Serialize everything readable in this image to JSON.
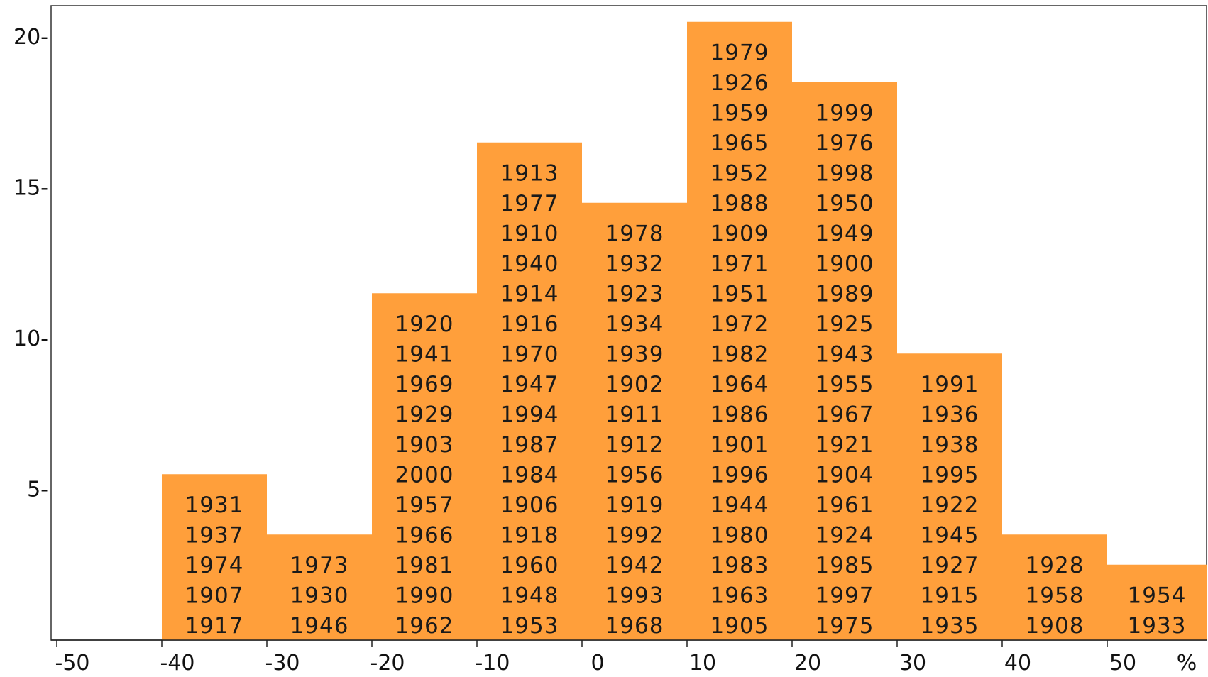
{
  "chart_data": {
    "type": "bar",
    "title": "",
    "xlabel": "",
    "ylabel": "",
    "unit_label": "%",
    "bar_color": "#FF9F3B",
    "xlim": [
      -50,
      55
    ],
    "ylim": [
      0,
      21.5
    ],
    "x_ticks": [
      "-50",
      "-40",
      "-30",
      "-20",
      "-10",
      "0",
      "10",
      "20",
      "30",
      "40",
      "50"
    ],
    "y_ticks": [
      "5-",
      "10-",
      "15-",
      "20-"
    ],
    "bins": [
      {
        "range": [
          -40,
          -30
        ],
        "count": 5,
        "years": [
          "1931",
          "1937",
          "1974",
          "1907",
          "1917"
        ]
      },
      {
        "range": [
          -30,
          -20
        ],
        "count": 3,
        "years": [
          "1973",
          "1930",
          "1946"
        ]
      },
      {
        "range": [
          -20,
          -10
        ],
        "count": 11,
        "years": [
          "1920",
          "1941",
          "1969",
          "1929",
          "1903",
          "2000",
          "1957",
          "1966",
          "1981",
          "1990",
          "1962"
        ]
      },
      {
        "range": [
          -10,
          0
        ],
        "count": 16,
        "years": [
          "1913",
          "1977",
          "1910",
          "1940",
          "1914",
          "1916",
          "1970",
          "1947",
          "1994",
          "1987",
          "1984",
          "1906",
          "1918",
          "1960",
          "1948",
          "1953"
        ]
      },
      {
        "range": [
          0,
          10
        ],
        "count": 14,
        "years": [
          "1978",
          "1932",
          "1923",
          "1934",
          "1939",
          "1902",
          "1911",
          "1912",
          "1956",
          "1919",
          "1992",
          "1942",
          "1993",
          "1968"
        ]
      },
      {
        "range": [
          10,
          20
        ],
        "count": 20,
        "years": [
          "1979",
          "1926",
          "1959",
          "1965",
          "1952",
          "1988",
          "1909",
          "1971",
          "1951",
          "1972",
          "1982",
          "1964",
          "1986",
          "1901",
          "1996",
          "1944",
          "1980",
          "1983",
          "1963",
          "1905"
        ]
      },
      {
        "range": [
          20,
          30
        ],
        "count": 18,
        "years": [
          "1999",
          "1976",
          "1998",
          "1950",
          "1949",
          "1900",
          "1989",
          "1925",
          "1943",
          "1955",
          "1967",
          "1921",
          "1904",
          "1961",
          "1924",
          "1985",
          "1997",
          "1975"
        ]
      },
      {
        "range": [
          30,
          40
        ],
        "count": 9,
        "years": [
          "1991",
          "1936",
          "1938",
          "1995",
          "1922",
          "1945",
          "1927",
          "1915",
          "1935"
        ]
      },
      {
        "range": [
          40,
          50
        ],
        "count": 3,
        "years": [
          "1928",
          "1958",
          "1908"
        ]
      },
      {
        "range": [
          50,
          60
        ],
        "count": 2,
        "years": [
          "1954",
          "1933"
        ]
      }
    ]
  }
}
